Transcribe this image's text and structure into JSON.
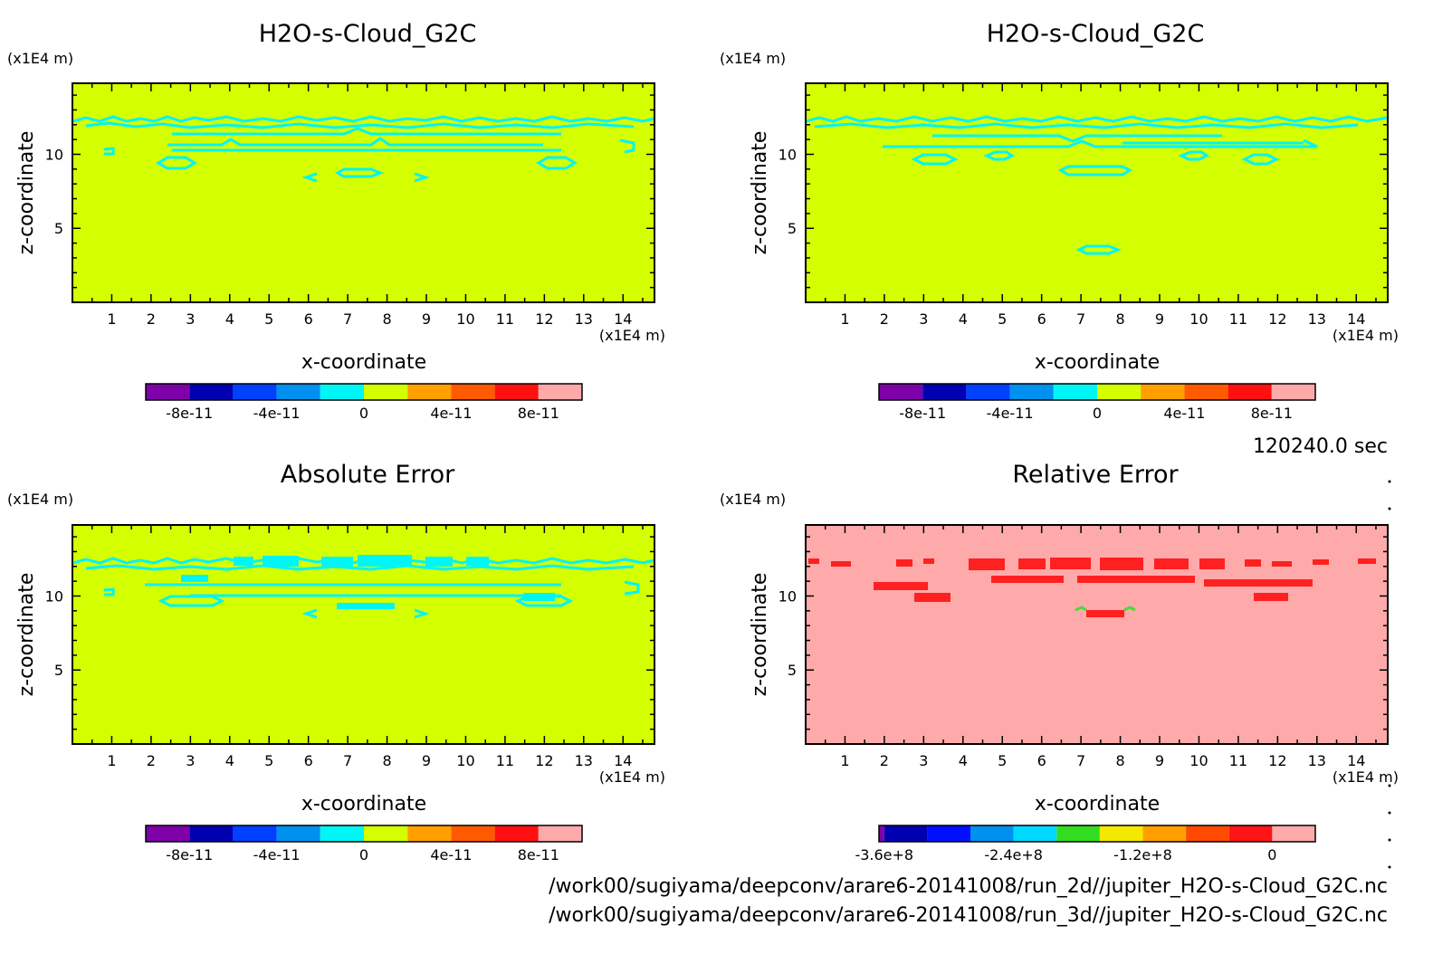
{
  "time_label": "120240.0 sec",
  "file_paths": [
    "/work00/sugiyama/deepconv/arare6-20141008/run_2d//jupiter_H2O-s-Cloud_G2C.nc",
    "/work00/sugiyama/deepconv/arare6-20141008/run_3d//jupiter_H2O-s-Cloud_G2C.nc"
  ],
  "colors": {
    "contour": "#00f5f5",
    "relative_contour": "#ff2020",
    "relative_marker": "#4ad93b"
  },
  "chart_data": [
    {
      "type": "heatmap",
      "title": "H2O-s-Cloud_G2C",
      "xlabel": "x-coordinate",
      "ylabel": "z-coordinate",
      "x_unit": "(x1E4 m)",
      "y_unit": "(x1E4 m)",
      "xlim": [
        0,
        14.8
      ],
      "ylim": [
        0,
        14.8
      ],
      "xticks": [
        1,
        2,
        3,
        4,
        5,
        6,
        7,
        8,
        9,
        10,
        11,
        12,
        13,
        14
      ],
      "yticks": [
        5,
        10
      ],
      "background": "#d4ff00",
      "colorbar": {
        "colors": [
          "#7d00a8",
          "#0000b2",
          "#0040ff",
          "#0090f0",
          "#00f5f5",
          "#d4ff00",
          "#ffa000",
          "#ff5a00",
          "#ff1010",
          "#ffaaaa"
        ],
        "tick_labels": [
          "-8e-11",
          "-4e-11",
          "0",
          "4e-11",
          "8e-11"
        ]
      }
    },
    {
      "type": "heatmap",
      "title": "H2O-s-Cloud_G2C",
      "xlabel": "x-coordinate",
      "ylabel": "z-coordinate",
      "x_unit": "(x1E4 m)",
      "y_unit": "(x1E4 m)",
      "xlim": [
        0,
        14.8
      ],
      "ylim": [
        0,
        14.8
      ],
      "xticks": [
        1,
        2,
        3,
        4,
        5,
        6,
        7,
        8,
        9,
        10,
        11,
        12,
        13,
        14
      ],
      "yticks": [
        5,
        10
      ],
      "background": "#d4ff00",
      "colorbar": {
        "colors": [
          "#7d00a8",
          "#0000b2",
          "#0040ff",
          "#0090f0",
          "#00f5f5",
          "#d4ff00",
          "#ffa000",
          "#ff5a00",
          "#ff1010",
          "#ffaaaa"
        ],
        "tick_labels": [
          "-8e-11",
          "-4e-11",
          "0",
          "4e-11",
          "8e-11"
        ]
      }
    },
    {
      "type": "heatmap",
      "title": "Absolute Error",
      "xlabel": "x-coordinate",
      "ylabel": "z-coordinate",
      "x_unit": "(x1E4 m)",
      "y_unit": "(x1E4 m)",
      "xlim": [
        0,
        14.8
      ],
      "ylim": [
        0,
        14.8
      ],
      "xticks": [
        1,
        2,
        3,
        4,
        5,
        6,
        7,
        8,
        9,
        10,
        11,
        12,
        13,
        14
      ],
      "yticks": [
        5,
        10
      ],
      "background": "#d4ff00",
      "colorbar": {
        "colors": [
          "#7d00a8",
          "#0000b2",
          "#0040ff",
          "#0090f0",
          "#00f5f5",
          "#d4ff00",
          "#ffa000",
          "#ff5a00",
          "#ff1010",
          "#ffaaaa"
        ],
        "tick_labels": [
          "-8e-11",
          "-4e-11",
          "0",
          "4e-11",
          "8e-11"
        ]
      }
    },
    {
      "type": "heatmap",
      "title": "Relative Error",
      "xlabel": "x-coordinate",
      "ylabel": "z-coordinate",
      "x_unit": "(x1E4 m)",
      "y_unit": "(x1E4 m)",
      "xlim": [
        0,
        14.8
      ],
      "ylim": [
        0,
        14.8
      ],
      "xticks": [
        1,
        2,
        3,
        4,
        5,
        6,
        7,
        8,
        9,
        10,
        11,
        12,
        13,
        14
      ],
      "yticks": [
        5,
        10
      ],
      "background": "#ffaaaa",
      "colorbar": {
        "colors": [
          "#7d00a8",
          "#0000b2",
          "#0010ff",
          "#0090f0",
          "#00d8ff",
          "#33dd22",
          "#f5e800",
          "#ffa000",
          "#ff4a00",
          "#ff1515",
          "#ffaaaa"
        ],
        "tick_labels": [
          "-3.6e+8",
          "-2.4e+8",
          "-1.2e+8",
          "0"
        ]
      }
    }
  ]
}
